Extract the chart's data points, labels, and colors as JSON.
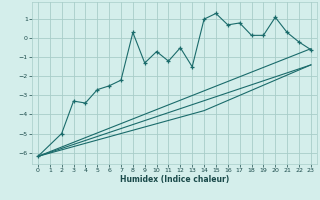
{
  "xlabel": "Humidex (Indice chaleur)",
  "bg_color": "#d4eeeb",
  "grid_color": "#a8cdc9",
  "line_color": "#1a6b6b",
  "xlim": [
    -0.5,
    23.5
  ],
  "ylim": [
    -6.6,
    1.9
  ],
  "xticks": [
    0,
    1,
    2,
    3,
    4,
    5,
    6,
    7,
    8,
    9,
    10,
    11,
    12,
    13,
    14,
    15,
    16,
    17,
    18,
    19,
    20,
    21,
    22,
    23
  ],
  "yticks": [
    1,
    0,
    -1,
    -2,
    -3,
    -4,
    -5,
    -6
  ],
  "main_x": [
    0,
    2,
    3,
    4,
    5,
    6,
    7,
    8,
    9,
    10,
    11,
    12,
    13,
    14,
    15,
    16,
    17,
    18,
    19,
    20,
    21,
    22,
    23
  ],
  "main_y": [
    -6.2,
    -5.0,
    -3.3,
    -3.4,
    -2.7,
    -2.5,
    -2.2,
    0.3,
    -1.3,
    -0.7,
    -1.2,
    -0.5,
    -1.5,
    1.0,
    1.3,
    0.7,
    0.8,
    0.15,
    0.15,
    1.1,
    0.3,
    -0.2,
    -0.6
  ],
  "line1_x": [
    0,
    23
  ],
  "line1_y": [
    -6.2,
    -0.55
  ],
  "line2_x": [
    0,
    23
  ],
  "line2_y": [
    -6.2,
    -1.4
  ],
  "line3_x": [
    0,
    14,
    23
  ],
  "line3_y": [
    -6.2,
    -3.8,
    -1.4
  ]
}
